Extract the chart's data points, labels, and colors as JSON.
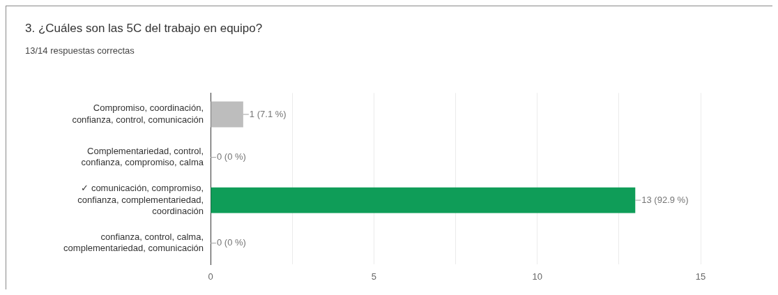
{
  "chart_data": {
    "type": "bar",
    "orientation": "horizontal",
    "title": "3. ¿Cuáles son las 5C del trabajo en equipo?",
    "subtitle": "13/14 respuestas correctas",
    "categories": [
      "Compromiso, coordinación, confianza, control, comunicación",
      "Complementariedad, control, confianza, compromiso, calma",
      "✓ comunicación, compromiso, confianza, complementariedad, coordinación",
      "confianza, control, calma, complementariedad, comunicación"
    ],
    "values": [
      1,
      0,
      13,
      0
    ],
    "colors": [
      "#bdbdbd",
      "#bdbdbd",
      "#0f9d58",
      "#bdbdbd"
    ],
    "value_labels": [
      "1 (7.1 %)",
      "0 (0 %)",
      "13 (92.9 %)",
      "0 (0 %)"
    ],
    "xlim": [
      0,
      15
    ],
    "xticks": [
      0,
      {
        "value": 2.5,
        "label": null
      },
      5,
      {
        "value": 7.5,
        "label": null
      },
      10,
      {
        "value": 12.5,
        "label": null
      },
      15
    ],
    "grid": "x",
    "legend": false
  }
}
